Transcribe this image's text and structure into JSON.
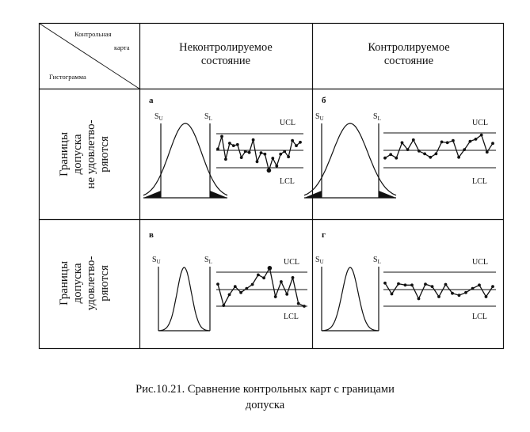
{
  "table": {
    "corner": {
      "top_label": "Контрольная",
      "top_label_2": "карта",
      "bottom_label": "Гистограмма"
    },
    "columns": [
      {
        "line1": "Неконтролируемое",
        "line2": "состояние"
      },
      {
        "line1": "Контролируемое",
        "line2": "состояние"
      }
    ],
    "rows": [
      {
        "lines": [
          "Границы",
          "допуска",
          "не удовлетво-",
          "ряются"
        ]
      },
      {
        "lines": [
          "Границы",
          "допуска",
          "удовлетво-",
          "ряются"
        ]
      }
    ],
    "panels": [
      {
        "letter": "а",
        "su": "S",
        "su_sub": "U",
        "sl": "S",
        "sl_sub": "L",
        "ucl": "UCL",
        "lcl": "LCL",
        "histogram": {
          "shape": "wide",
          "tails_outside_limits": true
        },
        "control_chart": {
          "in_control": false,
          "values": [
            0.55,
            0.92,
            0.25,
            0.72,
            0.65,
            0.68,
            0.3,
            0.48,
            0.45,
            0.82,
            0.18,
            0.44,
            0.4,
            -0.08,
            0.28,
            0.05,
            0.4,
            0.48,
            0.32,
            0.8,
            0.65,
            0.75
          ]
        }
      },
      {
        "letter": "б",
        "su": "S",
        "su_sub": "U",
        "sl": "S",
        "sl_sub": "L",
        "ucl": "UCL",
        "lcl": "LCL",
        "histogram": {
          "shape": "wide",
          "tails_outside_limits": true
        },
        "control_chart": {
          "in_control": true,
          "values": [
            0.28,
            0.38,
            0.28,
            0.72,
            0.52,
            0.8,
            0.48,
            0.4,
            0.3,
            0.4,
            0.74,
            0.72,
            0.78,
            0.3,
            0.52,
            0.76,
            0.82,
            0.94,
            0.45,
            0.7
          ]
        }
      },
      {
        "letter": "в",
        "su": "S",
        "su_sub": "U",
        "sl": "S",
        "sl_sub": "L",
        "ucl": "UCL",
        "lcl": "LCL",
        "histogram": {
          "shape": "narrow",
          "tails_outside_limits": false
        },
        "control_chart": {
          "in_control": false,
          "values": [
            0.65,
            0.02,
            0.34,
            0.58,
            0.4,
            0.52,
            0.64,
            0.92,
            0.83,
            1.12,
            0.28,
            0.72,
            0.35,
            0.84,
            0.08,
            0.0
          ]
        }
      },
      {
        "letter": "г",
        "su": "S",
        "su_sub": "U",
        "sl": "S",
        "sl_sub": "L",
        "ucl": "UCL",
        "lcl": "LCL",
        "histogram": {
          "shape": "narrow",
          "tails_outside_limits": false
        },
        "control_chart": {
          "in_control": true,
          "values": [
            0.68,
            0.36,
            0.66,
            0.62,
            0.62,
            0.22,
            0.65,
            0.58,
            0.28,
            0.64,
            0.38,
            0.32,
            0.4,
            0.52,
            0.62,
            0.28,
            0.58
          ]
        }
      }
    ]
  },
  "caption": {
    "line1": "Рис.10.21. Сравнение контрольных карт с границами",
    "line2": "допуска"
  }
}
